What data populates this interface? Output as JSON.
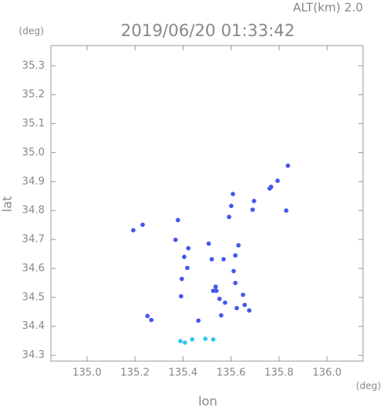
{
  "chart_data": {
    "type": "scatter",
    "title": "2019/06/20 01:33:42",
    "subtitle": "ALT(km) 2.0",
    "y_unit": "(deg)",
    "x_unit": "(deg)",
    "xlabel": "lon",
    "ylabel": "lat",
    "xlim": [
      134.85,
      136.15
    ],
    "ylim": [
      34.28,
      35.37
    ],
    "xticks": [
      {
        "value": 135,
        "label": "135.0"
      },
      {
        "value": 135.2,
        "label": "135.2"
      },
      {
        "value": 135.4,
        "label": "135.4"
      },
      {
        "value": 135.6,
        "label": "135.6"
      },
      {
        "value": 135.8,
        "label": "135.8"
      },
      {
        "value": 136,
        "label": "136.0"
      }
    ],
    "yticks": [
      34.3,
      34.4,
      34.5,
      34.6,
      34.7,
      34.8,
      34.9,
      {
        "value": 35,
        "label": "35.0"
      },
      35.1,
      35.2,
      35.3
    ],
    "series": [
      {
        "color": "#4455ee",
        "x": [
          135.837,
          135.794,
          135.761,
          135.767,
          135.83,
          135.696,
          135.69,
          135.608,
          135.601,
          135.592,
          135.379,
          135.232,
          135.193,
          135.369,
          135.422,
          135.507,
          135.405,
          135.418,
          135.392,
          135.395,
          135.52,
          135.618,
          135.631,
          135.569,
          135.611,
          135.536,
          135.539,
          135.552,
          135.575,
          135.526,
          135.618,
          135.624,
          135.65,
          135.657,
          135.676,
          135.559,
          135.464,
          135.252,
          135.268
        ],
        "y": [
          34.955,
          34.903,
          34.876,
          34.882,
          34.8,
          34.833,
          34.803,
          34.857,
          34.816,
          34.778,
          34.767,
          34.751,
          34.732,
          34.699,
          34.67,
          34.686,
          34.64,
          34.602,
          34.504,
          34.564,
          34.632,
          34.645,
          34.68,
          34.632,
          34.591,
          34.537,
          34.523,
          34.495,
          34.482,
          34.523,
          34.55,
          34.463,
          34.509,
          34.474,
          34.455,
          34.438,
          34.42,
          34.436,
          34.422
        ]
      },
      {
        "color": "#33c4f0",
        "x": [
          135.389,
          135.408,
          135.438,
          135.493,
          135.526
        ],
        "y": [
          34.349,
          34.344,
          34.355,
          34.357,
          34.355
        ]
      }
    ]
  }
}
